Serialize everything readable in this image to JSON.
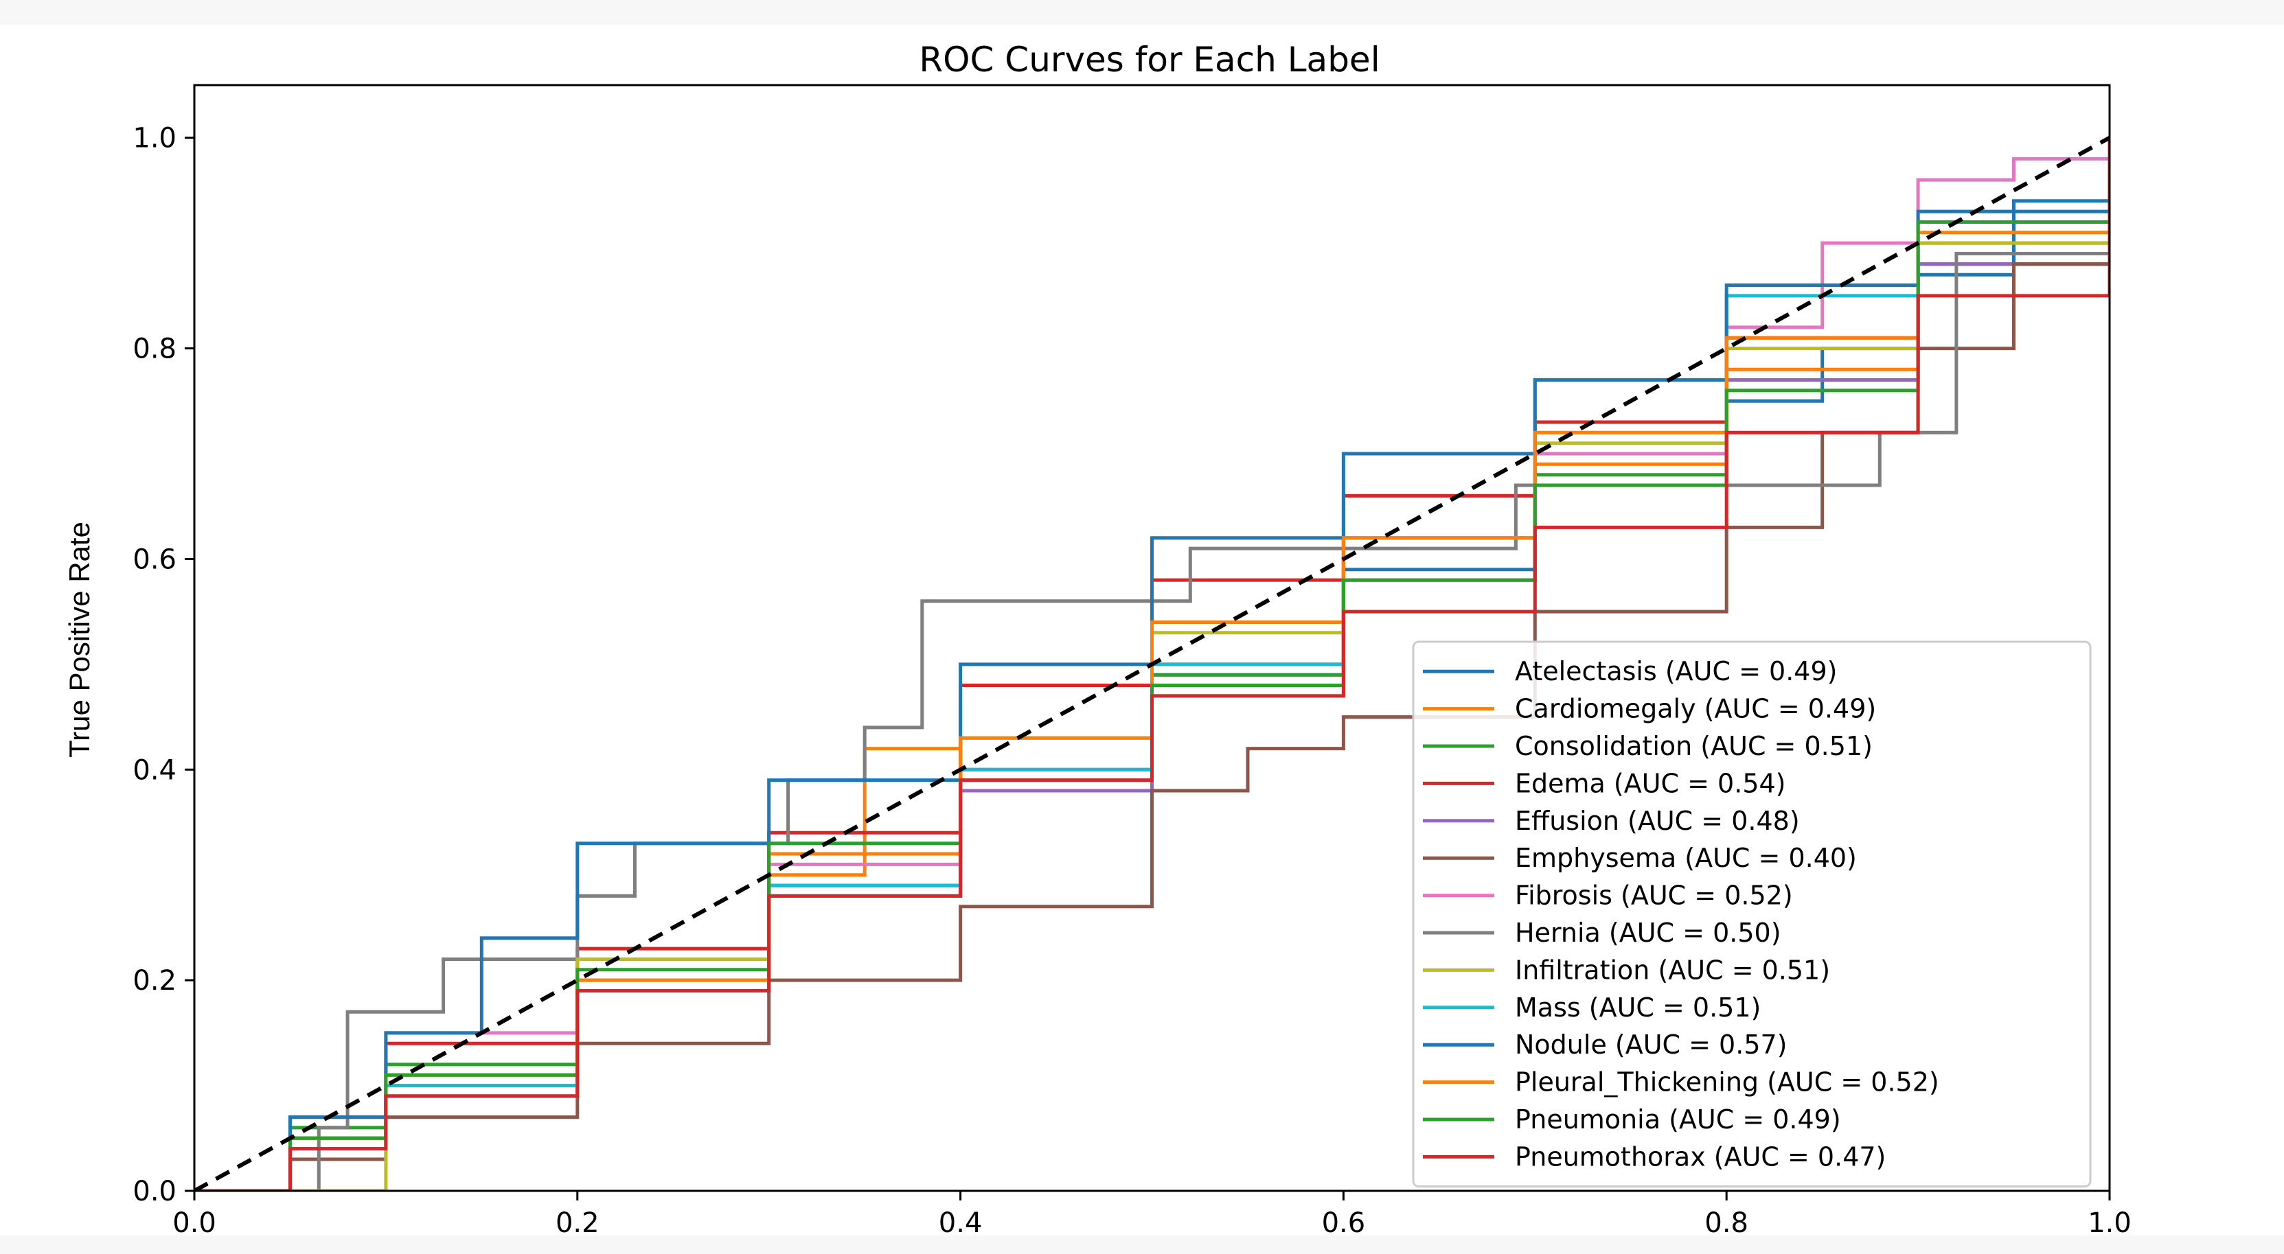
{
  "chart_data": {
    "type": "line",
    "title": "ROC Curves for Each Label",
    "xlabel": "",
    "ylabel": "True Positive Rate",
    "xlim": [
      0.0,
      1.0
    ],
    "ylim": [
      0.0,
      1.05
    ],
    "x_ticks": [
      "0.0",
      "0.2",
      "0.4",
      "0.6",
      "0.8",
      "1.0"
    ],
    "y_ticks": [
      "0.0",
      "0.2",
      "0.4",
      "0.6",
      "0.8",
      "1.0"
    ],
    "x_tick_values": [
      0.0,
      0.2,
      0.4,
      0.6,
      0.8,
      1.0
    ],
    "y_tick_values": [
      0.0,
      0.2,
      0.4,
      0.6,
      0.8,
      1.0
    ],
    "grid": false,
    "legend_position": "lower-right",
    "diagonal": {
      "x": [
        0,
        1
      ],
      "y": [
        0,
        1
      ],
      "color": "#000000",
      "style": "dashed"
    },
    "series": [
      {
        "name": "Atelectasis (AUC = 0.49)",
        "color": "#1f77b4",
        "x": [
          0,
          0.05,
          0.1,
          0.2,
          0.3,
          0.4,
          0.5,
          0.6,
          0.7,
          0.8,
          0.85,
          0.9,
          0.95,
          1
        ],
        "y": [
          0,
          0.05,
          0.09,
          0.19,
          0.29,
          0.39,
          0.49,
          0.59,
          0.67,
          0.75,
          0.8,
          0.87,
          0.94,
          1
        ]
      },
      {
        "name": "Cardiomegaly (AUC = 0.49)",
        "color": "#ff7f0e",
        "x": [
          0,
          0.05,
          0.1,
          0.2,
          0.3,
          0.35,
          0.4,
          0.5,
          0.6,
          0.7,
          0.8,
          0.9,
          1
        ],
        "y": [
          0,
          0.05,
          0.1,
          0.2,
          0.3,
          0.42,
          0.38,
          0.47,
          0.58,
          0.69,
          0.78,
          0.88,
          1
        ]
      },
      {
        "name": "Consolidation (AUC = 0.51)",
        "color": "#2ca02c",
        "x": [
          0,
          0.05,
          0.1,
          0.2,
          0.3,
          0.4,
          0.5,
          0.6,
          0.7,
          0.8,
          0.9,
          1
        ],
        "y": [
          0,
          0.06,
          0.12,
          0.22,
          0.32,
          0.4,
          0.49,
          0.58,
          0.68,
          0.77,
          0.88,
          1
        ]
      },
      {
        "name": "Edema (AUC = 0.54)",
        "color": "#d62728",
        "x": [
          0,
          0.05,
          0.1,
          0.2,
          0.3,
          0.4,
          0.5,
          0.6,
          0.7,
          0.8,
          0.9,
          1
        ],
        "y": [
          0,
          0.07,
          0.14,
          0.23,
          0.34,
          0.48,
          0.58,
          0.66,
          0.73,
          0.81,
          0.9,
          1
        ]
      },
      {
        "name": "Effusion (AUC = 0.48)",
        "color": "#9467bd",
        "x": [
          0,
          0.05,
          0.1,
          0.2,
          0.3,
          0.4,
          0.5,
          0.6,
          0.7,
          0.8,
          0.9,
          1
        ],
        "y": [
          0,
          0.04,
          0.09,
          0.19,
          0.28,
          0.38,
          0.5,
          0.58,
          0.67,
          0.77,
          0.88,
          1
        ]
      },
      {
        "name": "Emphysema (AUC = 0.40)",
        "color": "#8c564b",
        "x": [
          0,
          0.05,
          0.1,
          0.2,
          0.3,
          0.4,
          0.5,
          0.55,
          0.6,
          0.7,
          0.8,
          0.85,
          0.9,
          0.95,
          1
        ],
        "y": [
          0,
          0.03,
          0.07,
          0.14,
          0.2,
          0.27,
          0.38,
          0.42,
          0.45,
          0.55,
          0.63,
          0.72,
          0.8,
          0.88,
          1
        ]
      },
      {
        "name": "Fibrosis (AUC = 0.52)",
        "color": "#e377c2",
        "x": [
          0,
          0.05,
          0.1,
          0.2,
          0.3,
          0.4,
          0.5,
          0.6,
          0.7,
          0.8,
          0.85,
          0.9,
          0.95,
          1
        ],
        "y": [
          0,
          0.07,
          0.15,
          0.22,
          0.31,
          0.4,
          0.5,
          0.58,
          0.7,
          0.82,
          0.9,
          0.96,
          0.98,
          1
        ]
      },
      {
        "name": "Hernia (AUC = 0.50)",
        "color": "#7f7f7f",
        "x": [
          0,
          0.065,
          0.065,
          0.08,
          0.08,
          0.13,
          0.13,
          0.2,
          0.2,
          0.23,
          0.23,
          0.31,
          0.31,
          0.35,
          0.35,
          0.38,
          0.38,
          0.52,
          0.52,
          0.69,
          0.69,
          0.88,
          0.88,
          0.92,
          0.92,
          1
        ],
        "y": [
          0,
          0,
          0.06,
          0.06,
          0.17,
          0.17,
          0.22,
          0.22,
          0.28,
          0.28,
          0.33,
          0.33,
          0.39,
          0.39,
          0.44,
          0.44,
          0.56,
          0.56,
          0.61,
          0.61,
          0.67,
          0.67,
          0.72,
          0.72,
          0.89,
          1
        ]
      },
      {
        "name": "Infiltration (AUC = 0.51)",
        "color": "#bcbd22",
        "x": [
          0,
          0.1,
          0.2,
          0.3,
          0.4,
          0.5,
          0.6,
          0.7,
          0.8,
          0.9,
          1
        ],
        "y": [
          0,
          0.11,
          0.22,
          0.32,
          0.43,
          0.53,
          0.62,
          0.71,
          0.8,
          0.9,
          1
        ]
      },
      {
        "name": "Mass (AUC = 0.51)",
        "color": "#17becf",
        "x": [
          0,
          0.05,
          0.1,
          0.2,
          0.3,
          0.4,
          0.5,
          0.6,
          0.7,
          0.8,
          0.9,
          1
        ],
        "y": [
          0,
          0.05,
          0.1,
          0.19,
          0.29,
          0.4,
          0.5,
          0.62,
          0.77,
          0.85,
          0.92,
          1
        ]
      },
      {
        "name": "Nodule (AUC = 0.57)",
        "color": "#1f77b4",
        "x": [
          0,
          0.05,
          0.1,
          0.15,
          0.2,
          0.3,
          0.4,
          0.5,
          0.6,
          0.7,
          0.8,
          0.9,
          1
        ],
        "y": [
          0,
          0.07,
          0.15,
          0.24,
          0.33,
          0.39,
          0.5,
          0.62,
          0.7,
          0.77,
          0.86,
          0.93,
          1
        ]
      },
      {
        "name": "Pleural_Thickening (AUC = 0.52)",
        "color": "#ff7f0e",
        "x": [
          0,
          0.05,
          0.1,
          0.2,
          0.3,
          0.4,
          0.5,
          0.6,
          0.7,
          0.8,
          0.9,
          1
        ],
        "y": [
          0,
          0.05,
          0.11,
          0.2,
          0.32,
          0.43,
          0.54,
          0.62,
          0.72,
          0.81,
          0.91,
          1
        ]
      },
      {
        "name": "Pneumonia (AUC = 0.49)",
        "color": "#2ca02c",
        "x": [
          0,
          0.05,
          0.1,
          0.2,
          0.3,
          0.4,
          0.5,
          0.6,
          0.7,
          0.8,
          0.9,
          1
        ],
        "y": [
          0,
          0.05,
          0.11,
          0.21,
          0.33,
          0.39,
          0.48,
          0.58,
          0.67,
          0.76,
          0.92,
          1
        ]
      },
      {
        "name": "Pneumothorax (AUC = 0.47)",
        "color": "#d62728",
        "x": [
          0,
          0.05,
          0.1,
          0.2,
          0.3,
          0.4,
          0.5,
          0.6,
          0.7,
          0.8,
          0.9,
          1
        ],
        "y": [
          0,
          0.04,
          0.09,
          0.19,
          0.28,
          0.39,
          0.47,
          0.55,
          0.63,
          0.72,
          0.85,
          1
        ]
      }
    ]
  }
}
